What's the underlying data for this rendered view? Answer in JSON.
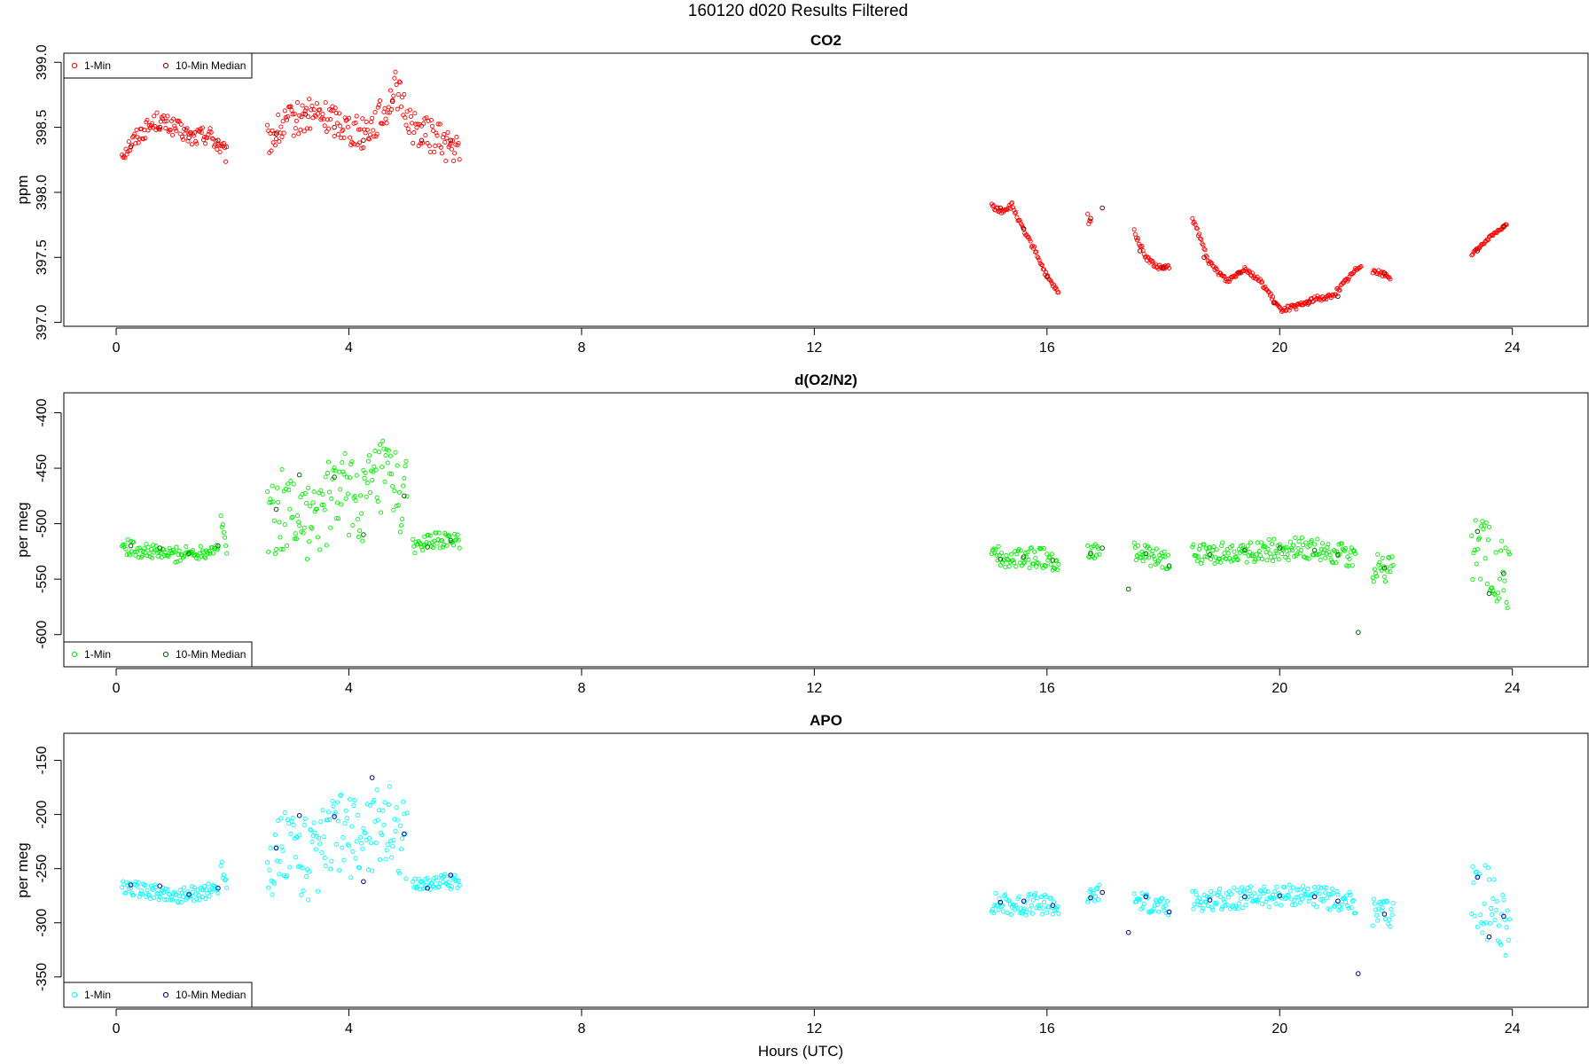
{
  "figure": {
    "title": "160120   d020   Results Filtered",
    "xlabel": "Hours (UTC)"
  },
  "chart_data": [
    {
      "type": "scatter",
      "title": "CO2",
      "ylabel": "ppm",
      "xlim": [
        -0.9,
        25.3
      ],
      "ylim": [
        396.97,
        399.07
      ],
      "xticks": [
        0,
        4,
        8,
        12,
        16,
        20,
        24
      ],
      "yticks": [
        397.0,
        397.5,
        398.0,
        398.5,
        399.0
      ],
      "ytick_labels": [
        "397.0",
        "397.5",
        "398.0",
        "398.5",
        "399.0"
      ],
      "legend_position": "top-left",
      "colors": {
        "one_min": "#ff0000",
        "median": "#8b0000"
      },
      "series": [
        {
          "name": "1-Min",
          "segments": [
            {
              "x": [
                0.1,
                0.4,
                0.7,
                1.0,
                1.3,
                1.6,
                1.9
              ],
              "y": [
                398.3,
                398.45,
                398.55,
                398.5,
                398.42,
                398.45,
                398.28
              ],
              "noise": 0.07
            },
            {
              "x": [
                2.6,
                3.0,
                3.4,
                3.8,
                4.2,
                4.6,
                4.8,
                5.1,
                5.5,
                5.9
              ],
              "y": [
                398.4,
                398.55,
                398.6,
                398.55,
                398.45,
                398.6,
                398.8,
                398.5,
                398.42,
                398.3
              ],
              "noise": 0.13
            },
            {
              "x": [
                15.05,
                15.2,
                15.4,
                15.6,
                15.8,
                16.0,
                16.2
              ],
              "y": [
                397.9,
                397.85,
                397.9,
                397.7,
                397.55,
                397.35,
                397.22
              ],
              "noise": 0.02
            },
            {
              "x": [
                16.7,
                16.75
              ],
              "y": [
                397.8,
                397.78
              ],
              "noise": 0.05
            },
            {
              "x": [
                17.5,
                17.7,
                17.9,
                18.1
              ],
              "y": [
                397.7,
                397.5,
                397.42,
                397.42
              ],
              "noise": 0.02
            },
            {
              "x": [
                18.5,
                18.8,
                19.1,
                19.4,
                19.7,
                20.0,
                20.3,
                20.6,
                20.9,
                21.2,
                21.4
              ],
              "y": [
                397.8,
                397.45,
                397.32,
                397.42,
                397.3,
                397.1,
                397.12,
                397.18,
                397.2,
                397.35,
                397.45
              ],
              "noise": 0.02
            },
            {
              "x": [
                21.6,
                21.9
              ],
              "y": [
                397.4,
                397.35
              ],
              "noise": 0.02
            },
            {
              "x": [
                23.3,
                23.6,
                23.9
              ],
              "y": [
                397.52,
                397.65,
                397.75
              ],
              "noise": 0.01
            }
          ]
        },
        {
          "name": "10-Min Median",
          "points": [
            [
              0.25,
              398.35
            ],
            [
              0.75,
              398.5
            ],
            [
              1.25,
              398.42
            ],
            [
              1.75,
              398.4
            ],
            [
              2.75,
              398.45
            ],
            [
              3.25,
              398.6
            ],
            [
              3.75,
              398.5
            ],
            [
              4.25,
              398.4
            ],
            [
              4.75,
              398.7
            ],
            [
              5.25,
              398.4
            ],
            [
              5.75,
              398.4
            ],
            [
              15.2,
              397.88
            ],
            [
              15.6,
              397.72
            ],
            [
              16.0,
              397.35
            ],
            [
              16.75,
              397.8
            ],
            [
              16.95,
              397.88
            ],
            [
              17.6,
              397.55
            ],
            [
              18.0,
              397.42
            ],
            [
              18.7,
              397.5
            ],
            [
              19.3,
              397.38
            ],
            [
              19.9,
              397.15
            ],
            [
              20.5,
              397.15
            ],
            [
              21.0,
              397.2
            ],
            [
              21.8,
              397.38
            ],
            [
              23.4,
              397.55
            ],
            [
              23.85,
              397.74
            ]
          ]
        }
      ]
    },
    {
      "type": "scatter",
      "title": "d(O2/N2)",
      "ylabel": "per meg",
      "xlim": [
        -0.9,
        25.3
      ],
      "ylim": [
        -629,
        -382
      ],
      "xticks": [
        0,
        4,
        8,
        12,
        16,
        20,
        24
      ],
      "yticks": [
        -600,
        -550,
        -500,
        -450,
        -400
      ],
      "ytick_labels": [
        "-600",
        "-550",
        "-500",
        "-450",
        "-400"
      ],
      "legend_position": "bottom-left",
      "colors": {
        "one_min": "#00ee00",
        "median": "#006400"
      },
      "series": [
        {
          "name": "1-Min",
          "segments": [
            {
              "x": [
                0.1,
                0.5,
                1.0,
                1.5,
                1.75
              ],
              "y": [
                -520,
                -525,
                -528,
                -525,
                -520
              ],
              "noise": 7
            },
            {
              "x": [
                1.8,
                1.9
              ],
              "y": [
                -500,
                -520
              ],
              "noise": 8
            },
            {
              "x": [
                2.6,
                3.0,
                3.4,
                3.8,
                4.2,
                4.6,
                5.0
              ],
              "y": [
                -495,
                -485,
                -500,
                -470,
                -480,
                -460,
                -480
              ],
              "noise": 38
            },
            {
              "x": [
                5.1,
                5.5,
                5.9
              ],
              "y": [
                -520,
                -515,
                -515
              ],
              "noise": 7
            },
            {
              "x": [
                15.05,
                15.5,
                16.0,
                16.2
              ],
              "y": [
                -530,
                -532,
                -530,
                -535
              ],
              "noise": 10
            },
            {
              "x": [
                16.7,
                16.9
              ],
              "y": [
                -525,
                -522
              ],
              "noise": 8
            },
            {
              "x": [
                17.5,
                18.1
              ],
              "y": [
                -525,
                -535
              ],
              "noise": 9
            },
            {
              "x": [
                18.5,
                19.5,
                20.5,
                21.3
              ],
              "y": [
                -528,
                -525,
                -522,
                -530
              ],
              "noise": 10
            },
            {
              "x": [
                21.6,
                21.95
              ],
              "y": [
                -540,
                -540
              ],
              "noise": 14
            },
            {
              "x": [
                23.3,
                23.95
              ],
              "y": [
                -520,
                -550
              ],
              "noise": 35
            }
          ]
        },
        {
          "name": "10-Min Median",
          "points": [
            [
              0.25,
              -520
            ],
            [
              0.75,
              -522
            ],
            [
              1.25,
              -527
            ],
            [
              1.75,
              -520
            ],
            [
              2.75,
              -487
            ],
            [
              3.15,
              -456
            ],
            [
              3.75,
              -458
            ],
            [
              4.25,
              -510
            ],
            [
              4.95,
              -475
            ],
            [
              5.35,
              -521
            ],
            [
              5.75,
              -515
            ],
            [
              15.2,
              -532
            ],
            [
              15.6,
              -530
            ],
            [
              16.1,
              -533
            ],
            [
              16.75,
              -527
            ],
            [
              16.95,
              -522
            ],
            [
              17.4,
              -559
            ],
            [
              17.7,
              -527
            ],
            [
              18.1,
              -538
            ],
            [
              18.8,
              -528
            ],
            [
              19.4,
              -524
            ],
            [
              20.0,
              -522
            ],
            [
              20.6,
              -524
            ],
            [
              21.0,
              -528
            ],
            [
              21.35,
              -598
            ],
            [
              21.8,
              -540
            ],
            [
              23.4,
              -507
            ],
            [
              23.6,
              -563
            ],
            [
              23.85,
              -545
            ]
          ]
        }
      ]
    },
    {
      "type": "scatter",
      "title": "APO",
      "ylabel": "per meg",
      "xlim": [
        -0.9,
        25.3
      ],
      "ylim": [
        -378,
        -125
      ],
      "xticks": [
        0,
        4,
        8,
        12,
        16,
        20,
        24
      ],
      "yticks": [
        -350,
        -300,
        -250,
        -200,
        -150
      ],
      "ytick_labels": [
        "-350",
        "-300",
        "-250",
        "-200",
        "-150"
      ],
      "legend_position": "bottom-left",
      "colors": {
        "one_min": "#00ffff",
        "median": "#00008b"
      },
      "series": [
        {
          "name": "1-Min",
          "segments": [
            {
              "x": [
                0.1,
                0.5,
                1.0,
                1.5,
                1.75
              ],
              "y": [
                -268,
                -270,
                -275,
                -272,
                -268
              ],
              "noise": 7
            },
            {
              "x": [
                1.8,
                1.9
              ],
              "y": [
                -245,
                -265
              ],
              "noise": 8
            },
            {
              "x": [
                2.6,
                3.0,
                3.4,
                3.8,
                4.2,
                4.6,
                5.0
              ],
              "y": [
                -245,
                -230,
                -245,
                -215,
                -225,
                -205,
                -225
              ],
              "noise": 38
            },
            {
              "x": [
                5.1,
                5.5,
                5.9
              ],
              "y": [
                -265,
                -262,
                -262
              ],
              "noise": 7
            },
            {
              "x": [
                15.05,
                15.5,
                16.0,
                16.2
              ],
              "y": [
                -282,
                -284,
                -282,
                -286
              ],
              "noise": 10
            },
            {
              "x": [
                16.7,
                16.9
              ],
              "y": [
                -278,
                -272
              ],
              "noise": 8
            },
            {
              "x": [
                17.5,
                18.1
              ],
              "y": [
                -278,
                -288
              ],
              "noise": 9
            },
            {
              "x": [
                18.5,
                19.5,
                20.5,
                21.3
              ],
              "y": [
                -280,
                -276,
                -274,
                -283
              ],
              "noise": 10
            },
            {
              "x": [
                21.6,
                21.95
              ],
              "y": [
                -292,
                -292
              ],
              "noise": 14
            },
            {
              "x": [
                23.3,
                23.95
              ],
              "y": [
                -270,
                -300
              ],
              "noise": 35
            }
          ]
        },
        {
          "name": "10-Min Median",
          "points": [
            [
              0.25,
              -265
            ],
            [
              0.75,
              -266
            ],
            [
              1.25,
              -274
            ],
            [
              1.75,
              -268
            ],
            [
              2.75,
              -231
            ],
            [
              3.15,
              -201
            ],
            [
              3.75,
              -202
            ],
            [
              4.25,
              -262
            ],
            [
              4.4,
              -166
            ],
            [
              4.95,
              -218
            ],
            [
              5.35,
              -268
            ],
            [
              5.75,
              -256
            ],
            [
              15.2,
              -281
            ],
            [
              15.6,
              -280
            ],
            [
              16.1,
              -284
            ],
            [
              16.75,
              -277
            ],
            [
              16.95,
              -272
            ],
            [
              17.4,
              -309
            ],
            [
              17.7,
              -276
            ],
            [
              18.1,
              -290
            ],
            [
              18.8,
              -279
            ],
            [
              19.4,
              -276
            ],
            [
              20.0,
              -275
            ],
            [
              20.6,
              -276
            ],
            [
              21.0,
              -280
            ],
            [
              21.35,
              -347
            ],
            [
              21.8,
              -292
            ],
            [
              23.4,
              -258
            ],
            [
              23.6,
              -313
            ],
            [
              23.85,
              -294
            ]
          ]
        }
      ]
    }
  ]
}
